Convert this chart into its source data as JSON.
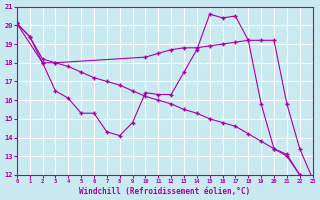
{
  "line1": {
    "x": [
      0,
      1,
      2,
      3,
      4,
      5,
      6,
      7,
      8,
      9,
      10,
      11,
      12,
      13,
      14,
      15,
      16,
      17,
      18,
      19,
      20,
      21,
      22,
      23
    ],
    "y": [
      20.1,
      19.4,
      18.2,
      18.0,
      17.8,
      17.5,
      17.2,
      17.0,
      16.8,
      16.5,
      16.2,
      16.0,
      15.8,
      15.5,
      15.3,
      15.0,
      14.8,
      14.6,
      14.2,
      13.8,
      13.4,
      13.0,
      12.0,
      11.8
    ]
  },
  "line2": {
    "x": [
      0,
      1,
      2,
      3,
      4,
      5,
      6,
      7,
      8,
      9,
      10,
      11,
      12,
      13,
      14,
      15,
      16,
      17,
      18,
      19,
      20,
      21,
      22,
      23
    ],
    "y": [
      20.1,
      19.4,
      18.0,
      16.5,
      16.1,
      15.3,
      15.3,
      14.3,
      14.1,
      14.8,
      16.4,
      16.3,
      16.3,
      17.5,
      18.7,
      20.6,
      20.4,
      20.5,
      19.2,
      15.8,
      13.4,
      13.1,
      12.0,
      11.8
    ]
  },
  "line3": {
    "x": [
      0,
      2,
      3,
      10,
      11,
      12,
      13,
      14,
      15,
      16,
      17,
      18,
      19,
      20,
      21,
      22,
      23
    ],
    "y": [
      20.1,
      18.0,
      18.0,
      18.3,
      18.5,
      18.7,
      18.8,
      18.8,
      18.9,
      19.0,
      19.1,
      19.2,
      19.2,
      19.2,
      15.8,
      13.4,
      11.8
    ]
  },
  "color": "#aa00aa",
  "background": "#c8eaf0",
  "grid_color": "#ffffff",
  "xlabel": "Windchill (Refroidissement éolien,°C)",
  "xlim": [
    0,
    23
  ],
  "ylim": [
    12,
    21
  ],
  "xticks": [
    0,
    1,
    2,
    3,
    4,
    5,
    6,
    7,
    8,
    9,
    10,
    11,
    12,
    13,
    14,
    15,
    16,
    17,
    18,
    19,
    20,
    21,
    22,
    23
  ],
  "yticks": [
    12,
    13,
    14,
    15,
    16,
    17,
    18,
    19,
    20,
    21
  ]
}
